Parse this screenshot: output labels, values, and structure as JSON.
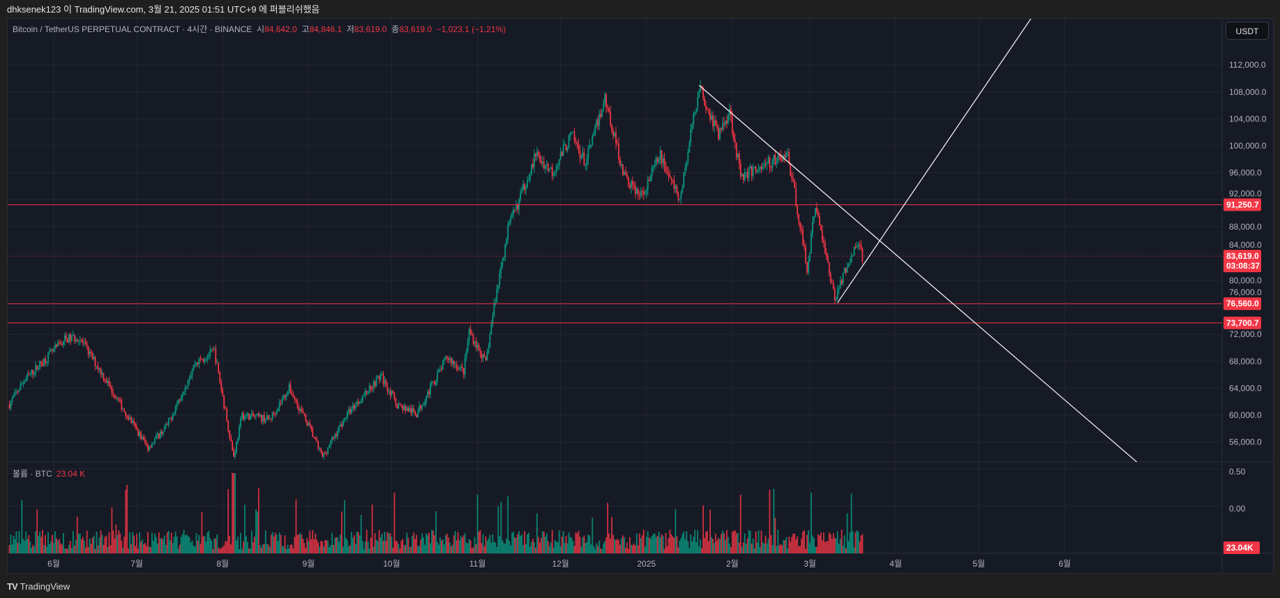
{
  "topbar": {
    "text": "dhksenek123 이 TradingView.com, 3월 21, 2025 01:51 UTC+9 에 퍼블리쉬했음"
  },
  "legend": {
    "symbol": "Bitcoin / TetherUS PERPETUAL CONTRACT · 4시간 · BINANCE",
    "open_label": "시",
    "open": "84,642.0",
    "high_label": "고",
    "high": "84,846.1",
    "low_label": "저",
    "low": "83,619.0",
    "close_label": "종",
    "close": "83,619.0",
    "change": "−1,023.1 (−1.21%)"
  },
  "currency_button": "USDT",
  "volume_legend": {
    "label": "볼륨 · BTC",
    "value": "23.04 K"
  },
  "footer": {
    "logo_text": "TradingView"
  },
  "colors": {
    "up": "#089981",
    "down": "#f23645",
    "hline": "#f23645",
    "trendline": "#ffffff",
    "background": "#161a25"
  },
  "chart_data": {
    "type": "candlestick",
    "title": "Bitcoin / TetherUS PERPETUAL CONTRACT · 4시간 · BINANCE",
    "ylim": [
      52000,
      116000
    ],
    "y_ticks": [
      "112,000.0",
      "108,000.0",
      "104,000.0",
      "100,000.0",
      "96,000.0",
      "92,000.0",
      "88,000.0",
      "84,000.0",
      "80,000.0",
      "76,000.0",
      "72,000.0",
      "68,000.0",
      "64,000.0",
      "60,000.0",
      "56,000.0"
    ],
    "y_tick_values": [
      112000,
      108000,
      104000,
      100000,
      96000,
      92000,
      88000,
      84000,
      80000,
      76000,
      72000,
      68000,
      64000,
      60000,
      56000
    ],
    "x_ticks": [
      {
        "label": "6월",
        "date": "2024-06-01"
      },
      {
        "label": "7월",
        "date": "2024-07-01"
      },
      {
        "label": "8월",
        "date": "2024-08-01"
      },
      {
        "label": "9월",
        "date": "2024-09-01"
      },
      {
        "label": "10월",
        "date": "2024-10-01"
      },
      {
        "label": "11월",
        "date": "2024-11-01"
      },
      {
        "label": "12월",
        "date": "2024-12-01"
      },
      {
        "label": "2025",
        "date": "2025-01-01"
      },
      {
        "label": "2월",
        "date": "2025-02-01"
      },
      {
        "label": "3월",
        "date": "2025-03-01"
      },
      {
        "label": "4월",
        "date": "2025-04-01"
      },
      {
        "label": "5월",
        "date": "2025-05-01"
      },
      {
        "label": "6월",
        "date": "2025-06-01"
      }
    ],
    "price_path": [
      [
        "2024-05-16",
        61600
      ],
      [
        "2024-05-21",
        65000
      ],
      [
        "2024-06-05",
        71300
      ],
      [
        "2024-06-10",
        71600
      ],
      [
        "2024-06-18",
        66500
      ],
      [
        "2024-06-25",
        61650
      ],
      [
        "2024-07-05",
        55200
      ],
      [
        "2024-07-12",
        58500
      ],
      [
        "2024-07-22",
        67700
      ],
      [
        "2024-07-29",
        69500
      ],
      [
        "2024-08-05",
        53800
      ],
      [
        "2024-08-08",
        60000
      ],
      [
        "2024-08-18",
        59400
      ],
      [
        "2024-08-25",
        64000
      ],
      [
        "2024-09-01",
        58500
      ],
      [
        "2024-09-06",
        53800
      ],
      [
        "2024-09-15",
        60200
      ],
      [
        "2024-09-27",
        65900
      ],
      [
        "2024-10-03",
        61600
      ],
      [
        "2024-10-10",
        60200
      ],
      [
        "2024-10-21",
        68600
      ],
      [
        "2024-10-27",
        66500
      ],
      [
        "2024-10-29",
        72500
      ],
      [
        "2024-11-04",
        67700
      ],
      [
        "2024-11-07",
        76200
      ],
      [
        "2024-11-12",
        87700
      ],
      [
        "2024-11-16",
        91900
      ],
      [
        "2024-11-22",
        98600
      ],
      [
        "2024-11-28",
        96200
      ],
      [
        "2024-12-05",
        101600
      ],
      [
        "2024-12-10",
        97400
      ],
      [
        "2024-12-17",
        107100
      ],
      [
        "2024-12-24",
        95500
      ],
      [
        "2024-12-30",
        92500
      ],
      [
        "2025-01-06",
        98600
      ],
      [
        "2025-01-13",
        91900
      ],
      [
        "2025-01-20",
        108900
      ],
      [
        "2025-01-27",
        101600
      ],
      [
        "2025-01-31",
        105300
      ],
      [
        "2025-02-04",
        95500
      ],
      [
        "2025-02-14",
        97400
      ],
      [
        "2025-02-21",
        98600
      ],
      [
        "2025-02-25",
        89500
      ],
      [
        "2025-02-28",
        81600
      ],
      [
        "2025-03-03",
        91300
      ],
      [
        "2025-03-10",
        77400
      ],
      [
        "2025-03-15",
        82900
      ],
      [
        "2025-03-19",
        85800
      ],
      [
        "2025-03-20",
        83619
      ]
    ],
    "horizontal_lines": [
      {
        "price": 91250.7,
        "label": "91,250.7"
      },
      {
        "price": 76560.0,
        "label": "76,560.0"
      },
      {
        "price": 73700.7,
        "label": "73,700.7"
      }
    ],
    "last_price": {
      "price": 83619.0,
      "label": "83,619.0",
      "countdown": "03:08:37"
    },
    "trendlines": [
      {
        "from": [
          "2025-01-20",
          109000
        ],
        "to": [
          "2025-06-30",
          52000
        ]
      },
      {
        "from": [
          "2025-03-11",
          76700
        ],
        "to": [
          "2025-05-20",
          119000
        ]
      }
    ],
    "volume": {
      "axis_ticks": [
        "0.50",
        "0.00"
      ],
      "last_label": "23.04K"
    }
  }
}
